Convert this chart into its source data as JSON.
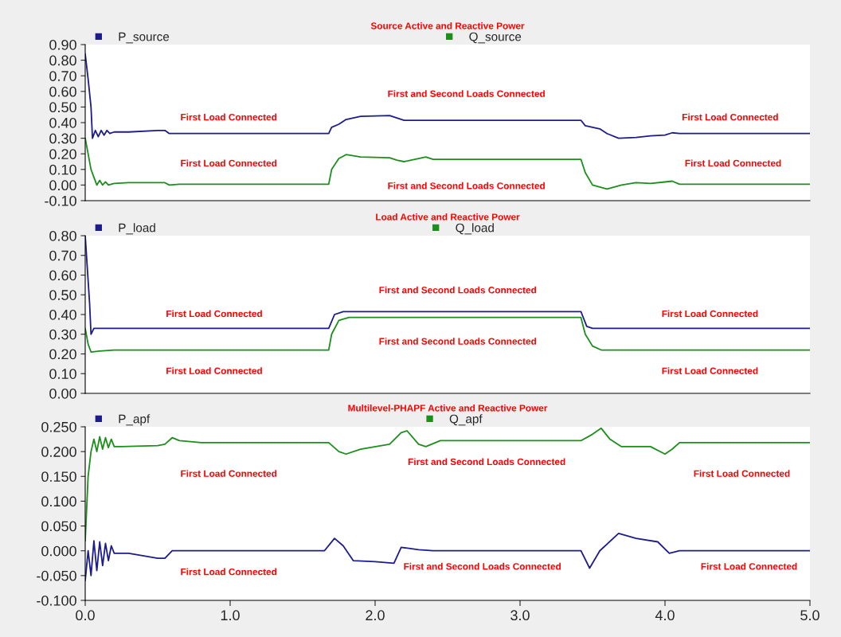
{
  "chart_data": [
    {
      "type": "line",
      "title": "Source Active and Reactive Power",
      "xlim": [
        0,
        5
      ],
      "ylim": [
        -0.1,
        0.9
      ],
      "yticks": [
        {
          "value": -0.1,
          "label": "-0.10"
        },
        {
          "value": 0.0,
          "label": "0.00"
        },
        {
          "value": 0.1,
          "label": "0.10"
        },
        {
          "value": 0.2,
          "label": "0.20"
        },
        {
          "value": 0.3,
          "label": "0.30"
        },
        {
          "value": 0.4,
          "label": "0.40"
        },
        {
          "value": 0.5,
          "label": "0.50"
        },
        {
          "value": 0.6,
          "label": "0.60"
        },
        {
          "value": 0.7,
          "label": "0.70"
        },
        {
          "value": 0.8,
          "label": "0.80"
        },
        {
          "value": 0.9,
          "label": "0.90"
        }
      ],
      "tick_labels": "y",
      "legend": "top",
      "grid": false,
      "series": [
        {
          "name": "P_source",
          "color": "#1c1c8e",
          "x": [
            0,
            0.02,
            0.04,
            0.05,
            0.07,
            0.09,
            0.11,
            0.13,
            0.15,
            0.17,
            0.2,
            0.3,
            0.5,
            0.55,
            0.58,
            1.68,
            1.7,
            1.75,
            1.8,
            1.9,
            2.1,
            2.15,
            2.2,
            3.42,
            3.45,
            3.55,
            3.6,
            3.68,
            3.8,
            3.9,
            4.0,
            4.05,
            4.1,
            5.0
          ],
          "values": [
            0.84,
            0.68,
            0.5,
            0.3,
            0.35,
            0.31,
            0.35,
            0.32,
            0.35,
            0.33,
            0.34,
            0.34,
            0.35,
            0.35,
            0.33,
            0.33,
            0.37,
            0.39,
            0.42,
            0.44,
            0.445,
            0.43,
            0.415,
            0.415,
            0.38,
            0.36,
            0.33,
            0.3,
            0.305,
            0.315,
            0.32,
            0.335,
            0.33,
            0.33
          ]
        },
        {
          "name": "Q_source",
          "color": "#1c8e1c",
          "x": [
            0,
            0.02,
            0.04,
            0.06,
            0.08,
            0.1,
            0.12,
            0.14,
            0.16,
            0.2,
            0.3,
            0.55,
            0.58,
            0.65,
            1.68,
            1.7,
            1.75,
            1.8,
            1.9,
            2.1,
            2.15,
            2.2,
            2.3,
            2.35,
            2.4,
            3.42,
            3.45,
            3.5,
            3.6,
            3.7,
            3.8,
            3.9,
            4.0,
            4.05,
            4.1,
            5.0
          ],
          "values": [
            0.3,
            0.2,
            0.1,
            0.05,
            0.0,
            0.03,
            0.0,
            0.02,
            0.0,
            0.01,
            0.015,
            0.015,
            0.0,
            0.005,
            0.005,
            0.1,
            0.17,
            0.195,
            0.18,
            0.175,
            0.16,
            0.15,
            0.17,
            0.18,
            0.165,
            0.165,
            0.08,
            0.0,
            -0.025,
            0.0,
            0.015,
            0.01,
            0.02,
            0.025,
            0.005,
            0.005
          ]
        }
      ],
      "annotations": [
        "First Load Connected",
        "First and Second Loads Connected",
        "First Load Connected",
        "First Load Connected",
        "First and Second Loads Connected",
        "First Load Connected"
      ]
    },
    {
      "type": "line",
      "title": "Load Active and Reactive Power",
      "xlim": [
        0,
        5
      ],
      "ylim": [
        0.0,
        0.8
      ],
      "yticks": [
        {
          "value": 0.0,
          "label": "0.00"
        },
        {
          "value": 0.1,
          "label": "0.10"
        },
        {
          "value": 0.2,
          "label": "0.20"
        },
        {
          "value": 0.3,
          "label": "0.30"
        },
        {
          "value": 0.4,
          "label": "0.40"
        },
        {
          "value": 0.5,
          "label": "0.50"
        },
        {
          "value": 0.6,
          "label": "0.60"
        },
        {
          "value": 0.7,
          "label": "0.70"
        },
        {
          "value": 0.8,
          "label": "0.80"
        }
      ],
      "tick_labels": "y",
      "legend": "top",
      "grid": false,
      "series": [
        {
          "name": "P_load",
          "color": "#1c1c8e",
          "x": [
            0,
            0.015,
            0.03,
            0.04,
            0.06,
            1.68,
            1.72,
            1.78,
            3.42,
            3.46,
            3.5,
            5.0
          ],
          "values": [
            0.8,
            0.63,
            0.46,
            0.3,
            0.33,
            0.33,
            0.4,
            0.415,
            0.415,
            0.34,
            0.33,
            0.33
          ]
        },
        {
          "name": "Q_load",
          "color": "#1c8e1c",
          "x": [
            0,
            0.02,
            0.04,
            0.1,
            0.2,
            1.68,
            1.7,
            1.75,
            1.82,
            3.42,
            3.45,
            3.5,
            3.56,
            5.0
          ],
          "values": [
            0.33,
            0.25,
            0.21,
            0.215,
            0.22,
            0.22,
            0.3,
            0.37,
            0.385,
            0.385,
            0.3,
            0.24,
            0.22,
            0.22
          ]
        }
      ],
      "annotations": [
        "First Load Connected",
        "First and Second Loads Connected",
        "First Load Connected",
        "First Load Connected",
        "First and Second Loads Connected",
        "First Load Connected"
      ]
    },
    {
      "type": "line",
      "title": "Multilevel-PHAPF Active and Reactive Power",
      "xlim": [
        0,
        5
      ],
      "ylim": [
        -0.1,
        0.25
      ],
      "xticks": [
        {
          "value": 0,
          "label": "0.0"
        },
        {
          "value": 1,
          "label": "1.0"
        },
        {
          "value": 2,
          "label": "2.0"
        },
        {
          "value": 3,
          "label": "3.0"
        },
        {
          "value": 4,
          "label": "4.0"
        },
        {
          "value": 5,
          "label": "5.0"
        }
      ],
      "yticks": [
        {
          "value": -0.1,
          "label": "-0.100"
        },
        {
          "value": -0.05,
          "label": "-0.050"
        },
        {
          "value": 0.0,
          "label": "0.000"
        },
        {
          "value": 0.05,
          "label": "0.050"
        },
        {
          "value": 0.1,
          "label": "0.100"
        },
        {
          "value": 0.15,
          "label": "0.150"
        },
        {
          "value": 0.2,
          "label": "0.200"
        },
        {
          "value": 0.25,
          "label": "0.250"
        }
      ],
      "legend": "top",
      "grid": false,
      "series": [
        {
          "name": "P_apf",
          "color": "#1c1c8e",
          "x": [
            0,
            0.02,
            0.04,
            0.06,
            0.08,
            0.1,
            0.12,
            0.14,
            0.16,
            0.18,
            0.2,
            0.3,
            0.5,
            0.55,
            0.6,
            1.65,
            1.72,
            1.78,
            1.85,
            2.0,
            2.13,
            2.18,
            2.3,
            2.4,
            3.42,
            3.48,
            3.55,
            3.68,
            3.8,
            3.95,
            4.03,
            4.1,
            5.0
          ],
          "values": [
            -0.06,
            0.0,
            -0.05,
            0.02,
            -0.04,
            0.018,
            -0.03,
            0.015,
            -0.02,
            0.01,
            -0.005,
            -0.005,
            -0.015,
            -0.015,
            0.0,
            0.0,
            0.025,
            0.01,
            -0.02,
            -0.022,
            -0.025,
            0.007,
            0.002,
            0.0,
            0.0,
            -0.035,
            0.0,
            0.035,
            0.025,
            0.018,
            -0.005,
            0.0,
            0.0
          ]
        },
        {
          "name": "Q_apf",
          "color": "#1c8e1c",
          "x": [
            0,
            0.02,
            0.04,
            0.06,
            0.08,
            0.1,
            0.12,
            0.14,
            0.16,
            0.18,
            0.2,
            0.25,
            0.5,
            0.55,
            0.6,
            0.65,
            0.8,
            1.68,
            1.75,
            1.8,
            1.9,
            2.1,
            2.18,
            2.22,
            2.3,
            2.35,
            2.45,
            3.42,
            3.5,
            3.56,
            3.62,
            3.7,
            3.9,
            4.0,
            4.05,
            4.1,
            5.0
          ],
          "values": [
            0.02,
            0.15,
            0.2,
            0.225,
            0.2,
            0.23,
            0.205,
            0.228,
            0.208,
            0.225,
            0.21,
            0.21,
            0.212,
            0.215,
            0.228,
            0.222,
            0.218,
            0.218,
            0.2,
            0.195,
            0.205,
            0.215,
            0.238,
            0.242,
            0.215,
            0.21,
            0.222,
            0.222,
            0.235,
            0.247,
            0.225,
            0.21,
            0.21,
            0.195,
            0.205,
            0.218,
            0.218
          ]
        }
      ],
      "annotations": [
        "First Load Connected",
        "First and Second Loads Connected",
        "First Load Connected",
        "First Load Connected",
        "First and Second Loads Connected",
        "First Load Connected"
      ]
    }
  ]
}
